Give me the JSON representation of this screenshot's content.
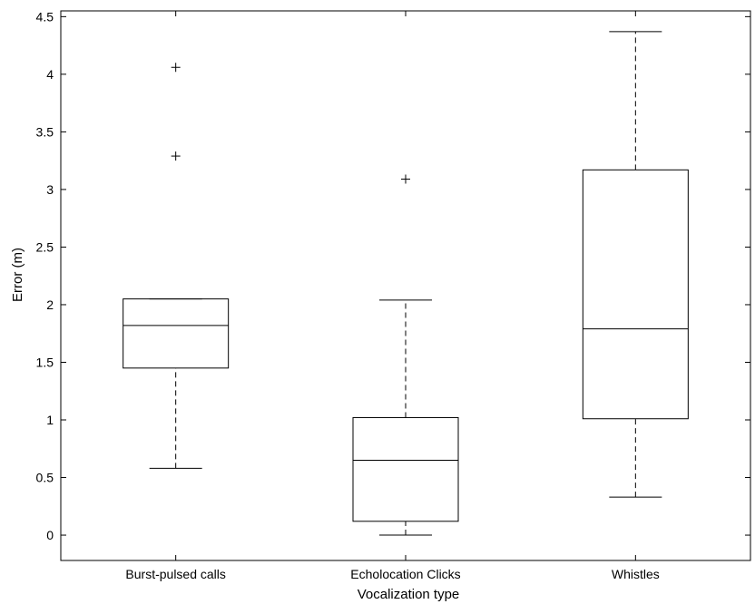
{
  "chart_data": {
    "type": "box",
    "xlabel": "Vocalization type",
    "ylabel": "Error (m)",
    "ylim": [
      -0.22,
      4.55
    ],
    "yticks": [
      0,
      0.5,
      1,
      1.5,
      2,
      2.5,
      3,
      3.5,
      4,
      4.5
    ],
    "ytick_labels": [
      "0",
      "0.5",
      "1",
      "1.5",
      "2",
      "2.5",
      "3",
      "3.5",
      "4",
      "4.5"
    ],
    "grid": false,
    "categories": [
      "Burst-pulsed calls",
      "Echolocation Clicks",
      "Whistles"
    ],
    "boxes": [
      {
        "label": "Burst-pulsed calls",
        "whisker_low": 0.58,
        "q1": 1.45,
        "median": 1.82,
        "q3": 2.05,
        "whisker_high": 2.05,
        "outliers": [
          3.29,
          4.06
        ]
      },
      {
        "label": "Echolocation Clicks",
        "whisker_low": 0.0,
        "q1": 0.12,
        "median": 0.65,
        "q3": 1.02,
        "whisker_high": 2.04,
        "outliers": [
          3.09
        ]
      },
      {
        "label": "Whistles",
        "whisker_low": 0.33,
        "q1": 1.01,
        "median": 1.79,
        "q3": 3.17,
        "whisker_high": 4.37,
        "outliers": []
      }
    ]
  }
}
